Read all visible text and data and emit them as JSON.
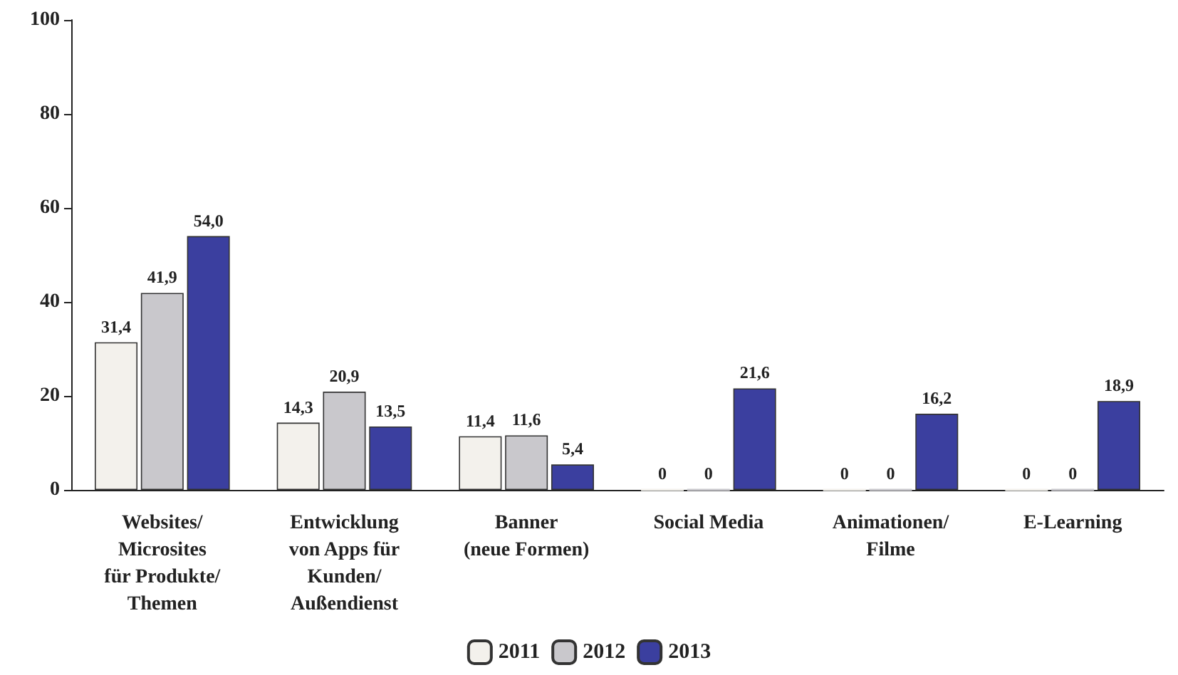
{
  "chart_data": {
    "type": "bar",
    "categories": [
      "Websites/\nMicrosites\nfür Produkte/\nThemen",
      "Entwicklung\nvon Apps für\nKunden/\nAußendienst",
      "Banner\n(neue Formen)",
      "Social Media",
      "Animationen/\nFilme",
      "E-Learning"
    ],
    "series": [
      {
        "name": "2011",
        "color": "#f3f1ec",
        "values": [
          31.4,
          14.3,
          11.4,
          0,
          0,
          0
        ],
        "value_labels": [
          "31,4",
          "14,3",
          "11,4",
          "0",
          "0",
          "0"
        ]
      },
      {
        "name": "2012",
        "color": "#c9c8cc",
        "values": [
          41.9,
          20.9,
          11.6,
          0,
          0,
          0
        ],
        "value_labels": [
          "41,9",
          "20,9",
          "11,6",
          "0",
          "0",
          "0"
        ]
      },
      {
        "name": "2013",
        "color": "#3b3f9f",
        "values": [
          54.0,
          13.5,
          5.4,
          21.6,
          16.2,
          18.9
        ],
        "value_labels": [
          "54,0",
          "13,5",
          "5,4",
          "21,6",
          "16,2",
          "18,9"
        ]
      }
    ],
    "ylim": [
      0,
      100
    ],
    "yticks": [
      0,
      20,
      40,
      60,
      80,
      100
    ],
    "grid": false,
    "legend": "bottom"
  }
}
